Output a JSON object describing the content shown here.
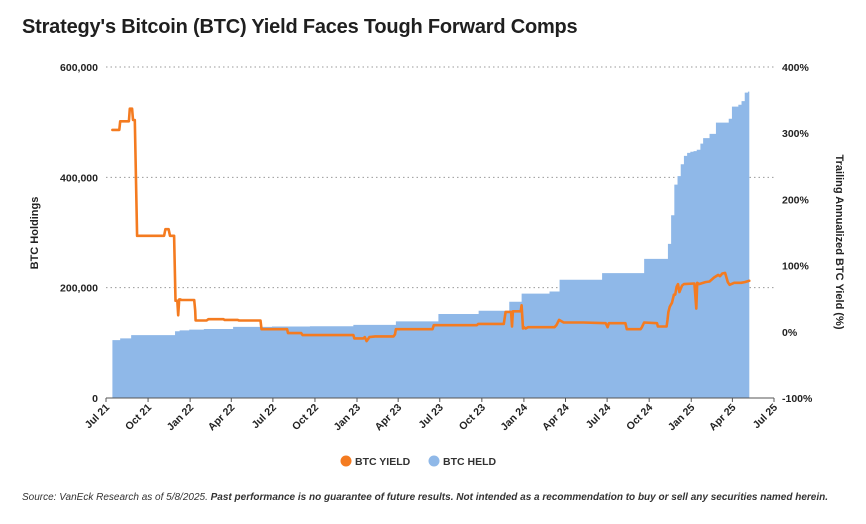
{
  "title": "Strategy's Bitcoin (BTC) Yield Faces Tough Forward Comps",
  "source_prefix": "Source: VanEck Research as of 5/8/2025. ",
  "source_disclaimer": "Past performance is no guarantee of future results. Not intended as a recommendation to buy or sell any securities named herein.",
  "chart_data": {
    "type": "area",
    "title": "Strategy's Bitcoin (BTC) Yield Faces Tough Forward Comps",
    "ylabel_left": "BTC Holdings",
    "ylabel_right": "Trailing Annualized BTC Yield (%)",
    "x_ticks": [
      "Jul 21",
      "Oct 21",
      "Jan 22",
      "Apr 22",
      "Jul 22",
      "Oct 22",
      "Jan 23",
      "Apr 23",
      "Jul 23",
      "Oct 23",
      "Jan 24",
      "Apr 24",
      "Jul 24",
      "Oct 24",
      "Jan 25",
      "Apr 25",
      "Jul 25"
    ],
    "xlim": [
      "2021-07-01",
      "2025-07-01"
    ],
    "y_left": {
      "ticks": [
        "0",
        "200,000",
        "400,000",
        "600,000"
      ],
      "values": [
        0,
        200000,
        400000,
        600000
      ],
      "lim": [
        0,
        600000
      ]
    },
    "y_right": {
      "ticks": [
        "-100%",
        "0%",
        "100%",
        "200%",
        "300%",
        "400%"
      ],
      "values": [
        -100,
        0,
        100,
        200,
        300,
        400
      ],
      "lim": [
        -100,
        400
      ]
    },
    "grid": "dotted horizontal",
    "legend_position": "bottom-center",
    "series": [
      {
        "name": "BTC HELD",
        "type": "area",
        "axis": "left",
        "color": "#8fb8e8",
        "points": [
          [
            "2021-07-15",
            105000
          ],
          [
            "2021-08-01",
            108000
          ],
          [
            "2021-08-25",
            114000
          ],
          [
            "2021-11-29",
            121000
          ],
          [
            "2021-12-09",
            122500
          ],
          [
            "2021-12-30",
            124000
          ],
          [
            "2022-01-31",
            125000
          ],
          [
            "2022-04-05",
            129000
          ],
          [
            "2022-06-29",
            129700
          ],
          [
            "2022-09-20",
            130000
          ],
          [
            "2022-12-24",
            132500
          ],
          [
            "2023-03-27",
            138955
          ],
          [
            "2023-06-28",
            152333
          ],
          [
            "2023-09-24",
            158245
          ],
          [
            "2023-11-30",
            174530
          ],
          [
            "2023-12-27",
            189150
          ],
          [
            "2024-02-26",
            193000
          ],
          [
            "2024-03-19",
            214246
          ],
          [
            "2024-06-20",
            226331
          ],
          [
            "2024-09-20",
            252220
          ],
          [
            "2024-11-11",
            279420
          ],
          [
            "2024-11-18",
            331200
          ],
          [
            "2024-11-25",
            386700
          ],
          [
            "2024-12-02",
            402100
          ],
          [
            "2024-12-09",
            423650
          ],
          [
            "2024-12-16",
            439000
          ],
          [
            "2024-12-23",
            444262
          ],
          [
            "2024-12-30",
            446400
          ],
          [
            "2025-01-06",
            447470
          ],
          [
            "2025-01-13",
            450000
          ],
          [
            "2025-01-21",
            461000
          ],
          [
            "2025-01-27",
            471107
          ],
          [
            "2025-02-10",
            478740
          ],
          [
            "2025-02-24",
            499096
          ],
          [
            "2025-03-17",
            499226
          ],
          [
            "2025-03-24",
            506137
          ],
          [
            "2025-03-31",
            528185
          ],
          [
            "2025-04-14",
            531644
          ],
          [
            "2025-04-21",
            538200
          ],
          [
            "2025-04-28",
            553555
          ],
          [
            "2025-05-05",
            555450
          ],
          [
            "2025-05-08",
            555450
          ]
        ]
      },
      {
        "name": "BTC YIELD",
        "type": "line",
        "axis": "right",
        "color": "#f47b20",
        "points": [
          [
            "2021-07-15",
            305
          ],
          [
            "2021-07-30",
            305
          ],
          [
            "2021-08-01",
            318
          ],
          [
            "2021-08-20",
            318
          ],
          [
            "2021-08-22",
            337
          ],
          [
            "2021-08-27",
            337
          ],
          [
            "2021-08-29",
            320
          ],
          [
            "2021-09-02",
            320
          ],
          [
            "2021-09-07",
            145
          ],
          [
            "2021-11-05",
            145
          ],
          [
            "2021-11-08",
            155
          ],
          [
            "2021-11-15",
            155
          ],
          [
            "2021-11-18",
            145
          ],
          [
            "2021-11-27",
            145
          ],
          [
            "2021-11-30",
            47
          ],
          [
            "2021-12-04",
            47
          ],
          [
            "2021-12-06",
            25
          ],
          [
            "2021-12-08",
            49
          ],
          [
            "2021-12-11",
            49
          ],
          [
            "2021-12-13",
            48
          ],
          [
            "2022-01-10",
            48
          ],
          [
            "2022-01-12",
            32
          ],
          [
            "2022-01-13",
            17
          ],
          [
            "2022-02-06",
            17
          ],
          [
            "2022-02-10",
            19
          ],
          [
            "2022-03-15",
            19
          ],
          [
            "2022-03-17",
            18
          ],
          [
            "2022-04-15",
            18
          ],
          [
            "2022-04-18",
            17
          ],
          [
            "2022-06-04",
            17
          ],
          [
            "2022-06-06",
            4
          ],
          [
            "2022-08-01",
            4
          ],
          [
            "2022-08-03",
            -2
          ],
          [
            "2022-09-01",
            -2
          ],
          [
            "2022-09-04",
            -5
          ],
          [
            "2022-11-01",
            -5
          ],
          [
            "2022-11-05",
            -5
          ],
          [
            "2022-12-24",
            -5
          ],
          [
            "2022-12-26",
            -10
          ],
          [
            "2023-01-15",
            -10
          ],
          [
            "2023-01-18",
            -8
          ],
          [
            "2023-01-22",
            -14
          ],
          [
            "2023-01-28",
            -8
          ],
          [
            "2023-02-10",
            -7
          ],
          [
            "2023-03-22",
            -7
          ],
          [
            "2023-03-25",
            -4
          ],
          [
            "2023-03-27",
            4
          ],
          [
            "2023-06-15",
            4
          ],
          [
            "2023-06-18",
            10
          ],
          [
            "2023-09-20",
            10
          ],
          [
            "2023-09-23",
            12
          ],
          [
            "2023-11-18",
            12
          ],
          [
            "2023-11-22",
            30
          ],
          [
            "2023-12-04",
            30
          ],
          [
            "2023-12-06",
            8
          ],
          [
            "2023-12-08",
            31
          ],
          [
            "2023-12-25",
            31
          ],
          [
            "2023-12-27",
            40
          ],
          [
            "2023-12-30",
            5
          ],
          [
            "2024-01-01",
            7
          ],
          [
            "2024-01-05",
            5
          ],
          [
            "2024-01-10",
            7
          ],
          [
            "2024-03-08",
            7
          ],
          [
            "2024-03-12",
            10
          ],
          [
            "2024-03-18",
            18
          ],
          [
            "2024-03-28",
            14
          ],
          [
            "2024-05-10",
            14
          ],
          [
            "2024-06-28",
            13
          ],
          [
            "2024-07-02",
            7
          ],
          [
            "2024-07-05",
            13
          ],
          [
            "2024-08-10",
            13
          ],
          [
            "2024-08-13",
            4
          ],
          [
            "2024-09-12",
            4
          ],
          [
            "2024-09-15",
            7
          ],
          [
            "2024-09-20",
            14
          ],
          [
            "2024-10-18",
            13
          ],
          [
            "2024-10-20",
            8
          ],
          [
            "2024-11-08",
            8
          ],
          [
            "2024-11-10",
            18
          ],
          [
            "2024-11-12",
            30
          ],
          [
            "2024-11-15",
            38
          ],
          [
            "2024-11-20",
            44
          ],
          [
            "2024-11-24",
            56
          ],
          [
            "2024-11-27",
            56
          ],
          [
            "2024-11-30",
            68
          ],
          [
            "2024-12-03",
            72
          ],
          [
            "2024-12-06",
            60
          ],
          [
            "2024-12-09",
            65
          ],
          [
            "2024-12-12",
            70
          ],
          [
            "2024-12-16",
            72
          ],
          [
            "2025-01-08",
            73
          ],
          [
            "2025-01-12",
            35
          ],
          [
            "2025-01-14",
            74
          ],
          [
            "2025-01-18",
            72
          ],
          [
            "2025-02-01",
            75
          ],
          [
            "2025-02-10",
            76
          ],
          [
            "2025-02-20",
            82
          ],
          [
            "2025-03-01",
            86
          ],
          [
            "2025-03-05",
            84
          ],
          [
            "2025-03-10",
            88
          ],
          [
            "2025-03-16",
            89
          ],
          [
            "2025-03-22",
            75
          ],
          [
            "2025-03-26",
            71
          ],
          [
            "2025-04-05",
            74
          ],
          [
            "2025-04-20",
            74
          ],
          [
            "2025-04-28",
            75
          ],
          [
            "2025-05-08",
            77
          ]
        ]
      }
    ]
  },
  "legend": {
    "yield": "BTC YIELD",
    "held": "BTC HELD"
  }
}
